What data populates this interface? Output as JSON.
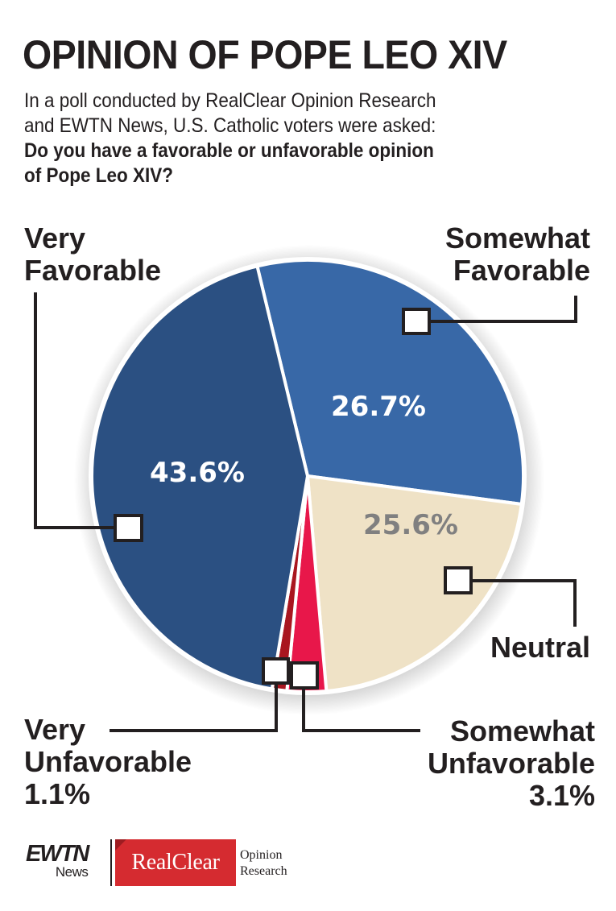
{
  "header": {
    "title": "OPINION OF POPE LEO XIV",
    "intro_line1": "In a poll conducted by RealClear Opinion Research",
    "intro_line2": "and EWTN News, U.S. Catholic voters were asked:",
    "question_line1": "Do you have a favorable or unfavorable opinion",
    "question_line2": "of Pope Leo XIV?"
  },
  "labels": {
    "very_favorable": [
      "Very",
      "Favorable"
    ],
    "somewhat_favorable": [
      "Somewhat",
      "Favorable"
    ],
    "neutral": [
      "Neutral"
    ],
    "very_unfavorable": [
      "Very",
      "Unfavorable",
      "1.1%"
    ],
    "somewhat_unfavorable": [
      "Somewhat",
      "Unfavorable",
      "3.1%"
    ]
  },
  "slice_labels": {
    "very_favorable": "43.6%",
    "somewhat_favorable": "26.7%",
    "neutral": "25.6%"
  },
  "colors": {
    "very_favorable": "#2b5082",
    "somewhat_favorable": "#3868a7",
    "neutral": "#efe2c6",
    "somewhat_unfavorable": "#e8174a",
    "very_unfavorable": "#a9161f",
    "neutral_label": "#808080",
    "text": "#231f20"
  },
  "footer": {
    "logo_ewtn": "EWTN",
    "logo_ewtn_sub": "News",
    "logo_realclear": "RealClear",
    "logo_opinion": "Opinion",
    "logo_research": "Research"
  },
  "chart_data": {
    "type": "pie",
    "title": "OPINION OF POPE LEO XIV",
    "subtitle": "In a poll conducted by RealClear Opinion Research and EWTN News, U.S. Catholic voters were asked: Do you have a favorable or unfavorable opinion of Pope Leo XIV?",
    "categories": [
      "Very Favorable",
      "Somewhat Favorable",
      "Neutral",
      "Somewhat Unfavorable",
      "Very Unfavorable"
    ],
    "values": [
      43.6,
      26.7,
      25.6,
      3.1,
      1.1
    ],
    "unit": "%",
    "colors": [
      "#2b5082",
      "#3868a7",
      "#efe2c6",
      "#e8174a",
      "#a9161f"
    ],
    "legend_position": "callout labels around pie"
  }
}
